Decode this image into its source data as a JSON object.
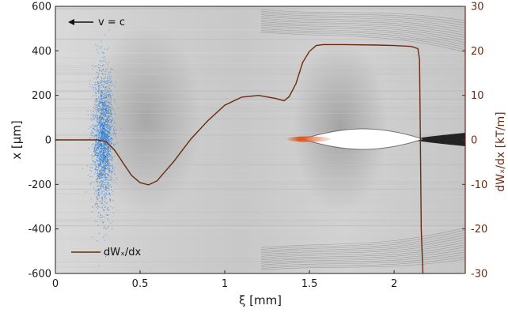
{
  "chart_data": {
    "type": "line",
    "xlabel": "ξ [mm]",
    "ylabel": "x [µm]",
    "y2label": "dWₓ/dx [kT/m]",
    "xlim": [
      0,
      2.42
    ],
    "ylim": [
      -600,
      600
    ],
    "y2lim": [
      -30,
      30
    ],
    "x_ticks": [
      0,
      0.5,
      1,
      1.5,
      2
    ],
    "x_tick_labels": [
      "0",
      "0.5",
      "1",
      "1.5",
      "2"
    ],
    "y_ticks": [
      -600,
      -400,
      -200,
      0,
      200,
      400,
      600
    ],
    "y_tick_labels": [
      "-600",
      "-400",
      "-200",
      "0",
      "200",
      "400",
      "600"
    ],
    "y2_ticks": [
      -30,
      -20,
      -10,
      0,
      10,
      20,
      30
    ],
    "y2_tick_labels": [
      "-30",
      "-20",
      "-10",
      "0",
      "10",
      "20",
      "30"
    ],
    "annotation": "v = c",
    "legend": {
      "position": "bottom-left",
      "entry": "dWₓ/dx"
    },
    "series": [
      {
        "name": "dWₓ/dx",
        "color": "#6b2a10",
        "axis": "right",
        "x": [
          0,
          0.1,
          0.2,
          0.25,
          0.3,
          0.35,
          0.4,
          0.45,
          0.5,
          0.55,
          0.6,
          0.7,
          0.8,
          0.9,
          1.0,
          1.1,
          1.2,
          1.3,
          1.35,
          1.38,
          1.42,
          1.46,
          1.5,
          1.54,
          1.58,
          1.7,
          1.9,
          2.0,
          2.1,
          2.14,
          2.15,
          2.155,
          2.16,
          2.17
        ],
        "y": [
          0,
          0,
          0,
          0,
          -0.4,
          -2.3,
          -5.2,
          -8.0,
          -9.6,
          -10.1,
          -9.2,
          -4.8,
          0.2,
          4.3,
          7.8,
          9.6,
          10.0,
          9.3,
          8.8,
          9.7,
          12.6,
          17.4,
          19.9,
          21.2,
          21.4,
          21.4,
          21.3,
          21.2,
          21.0,
          20.5,
          18.0,
          0,
          -20,
          -30
        ]
      }
    ],
    "beam_particles": {
      "name": "beam",
      "color": "#1f77d4",
      "xi_center": 0.28,
      "xi_spread": 0.03,
      "x_range": [
        -500,
        500
      ]
    },
    "witness_beam": {
      "color": "#e0541c",
      "xi_range": [
        1.36,
        1.62
      ],
      "x_center": 0
    },
    "background": {
      "type": "heatmap",
      "colormap": "grayscale"
    }
  }
}
